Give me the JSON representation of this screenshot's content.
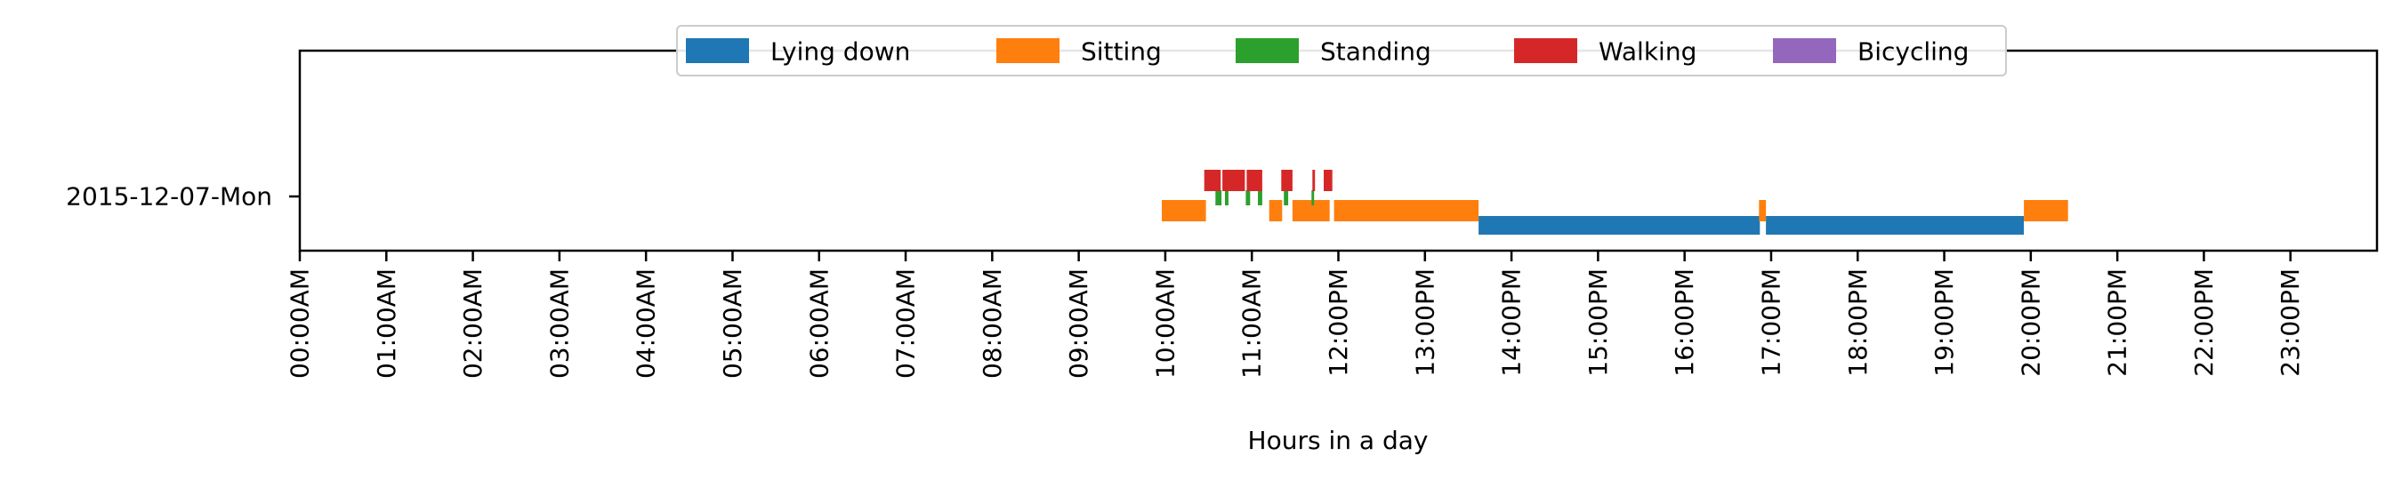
{
  "chart_data": {
    "type": "timeline",
    "xlabel": "Hours in a day",
    "x_unit": "hours",
    "xlim": [
      0,
      24
    ],
    "x_tick_labels": [
      "00:00AM",
      "01:00AM",
      "02:00AM",
      "03:00AM",
      "04:00AM",
      "05:00AM",
      "06:00AM",
      "07:00AM",
      "08:00AM",
      "09:00AM",
      "10:00AM",
      "11:00AM",
      "12:00PM",
      "13:00PM",
      "14:00PM",
      "15:00PM",
      "16:00PM",
      "17:00PM",
      "18:00PM",
      "19:00PM",
      "20:00PM",
      "21:00PM",
      "22:00PM",
      "23:00PM"
    ],
    "day_label": "2015-12-07-Mon",
    "legend_position": "top-center",
    "series": [
      {
        "name": "Lying down",
        "color": "#1f77b4",
        "intervals": [
          [
            13.62,
            16.87
          ],
          [
            16.94,
            19.92
          ]
        ]
      },
      {
        "name": "Sitting",
        "color": "#ff7f0e",
        "intervals": [
          [
            9.96,
            10.47
          ],
          [
            11.2,
            11.35
          ],
          [
            11.47,
            11.9
          ],
          [
            11.95,
            13.62
          ],
          [
            16.86,
            16.94
          ],
          [
            19.92,
            20.43
          ]
        ]
      },
      {
        "name": "Standing",
        "color": "#2ca02c",
        "intervals": [
          [
            10.58,
            10.65
          ],
          [
            10.69,
            10.73
          ],
          [
            10.93,
            10.98
          ],
          [
            11.07,
            11.12
          ],
          [
            11.37,
            11.42
          ],
          [
            11.69,
            11.72
          ]
        ]
      },
      {
        "name": "Walking",
        "color": "#d62728",
        "intervals": [
          [
            10.45,
            10.64
          ],
          [
            10.66,
            10.92
          ],
          [
            10.94,
            11.12
          ],
          [
            11.34,
            11.47
          ],
          [
            11.7,
            11.73
          ],
          [
            11.83,
            11.93
          ]
        ]
      },
      {
        "name": "Bicycling",
        "color": "#9467bd",
        "intervals": []
      }
    ]
  }
}
